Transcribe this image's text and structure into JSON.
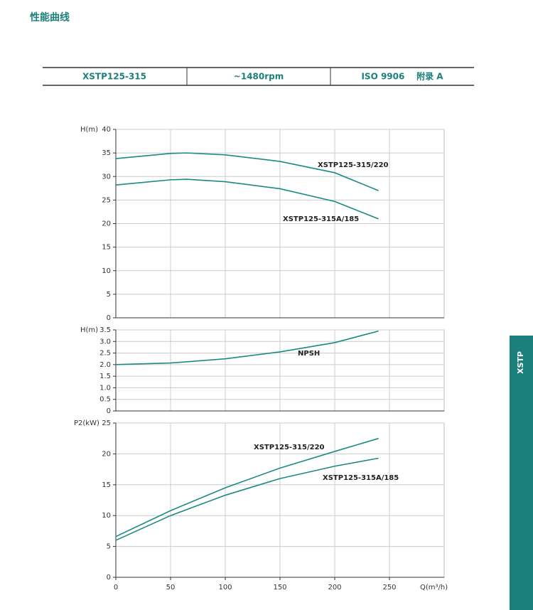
{
  "header": {
    "title": "性能曲线"
  },
  "table": {
    "cells": [
      "XSTP125-315",
      "~1480rpm",
      "ISO 9906    附录 A"
    ]
  },
  "side_tab": "XSTP",
  "chart_data": [
    {
      "type": "line",
      "ylabel": "H(m)",
      "xlim": [
        0,
        300
      ],
      "ylim": [
        0,
        40
      ],
      "yticks": [
        0,
        5,
        10,
        15,
        20,
        25,
        30,
        35,
        40
      ],
      "grid": true,
      "x": [
        0,
        50,
        65,
        100,
        150,
        200,
        240
      ],
      "series": [
        {
          "name": "XSTP125-315/220",
          "color": "#1b8a86",
          "values": [
            33.8,
            34.9,
            35,
            34.6,
            33.2,
            30.8,
            27
          ]
        },
        {
          "name": "XSTP125-315A/185",
          "color": "#1b8a86",
          "values": [
            28.2,
            29.3,
            29.4,
            28.9,
            27.4,
            24.7,
            21
          ]
        }
      ]
    },
    {
      "type": "line",
      "ylabel": "H(m)",
      "xlim": [
        0,
        300
      ],
      "ylim": [
        0,
        3.5
      ],
      "yticks": [
        0,
        0.5,
        {
          "value": 1,
          "label": "1.0"
        },
        1.5,
        {
          "value": 2,
          "label": "2.0"
        },
        2.5,
        {
          "value": 3,
          "label": "3.0"
        },
        3.5
      ],
      "grid": true,
      "x": [
        0,
        50,
        100,
        150,
        200,
        240
      ],
      "series": [
        {
          "name": "NPSH",
          "color": "#1b8a86",
          "values": [
            2.0,
            2.07,
            2.25,
            2.55,
            2.95,
            3.45
          ]
        }
      ]
    },
    {
      "type": "line",
      "ylabel": "P2(kW)",
      "xlabel": "Q(m³/h)",
      "xlim": [
        0,
        300
      ],
      "xticks": [
        0,
        50,
        100,
        150,
        200,
        250
      ],
      "ylim": [
        0,
        25
      ],
      "yticks": [
        0,
        5,
        10,
        15,
        20,
        25
      ],
      "grid": true,
      "x": [
        0,
        50,
        100,
        150,
        200,
        240
      ],
      "series": [
        {
          "name": "XSTP125-315/220",
          "color": "#1b8a86",
          "values": [
            6.6,
            10.8,
            14.5,
            17.7,
            20.4,
            22.5
          ]
        },
        {
          "name": "XSTP125-315A/185",
          "color": "#1b8a86",
          "values": [
            6,
            10,
            13.3,
            16,
            18,
            19.3
          ]
        }
      ]
    }
  ]
}
